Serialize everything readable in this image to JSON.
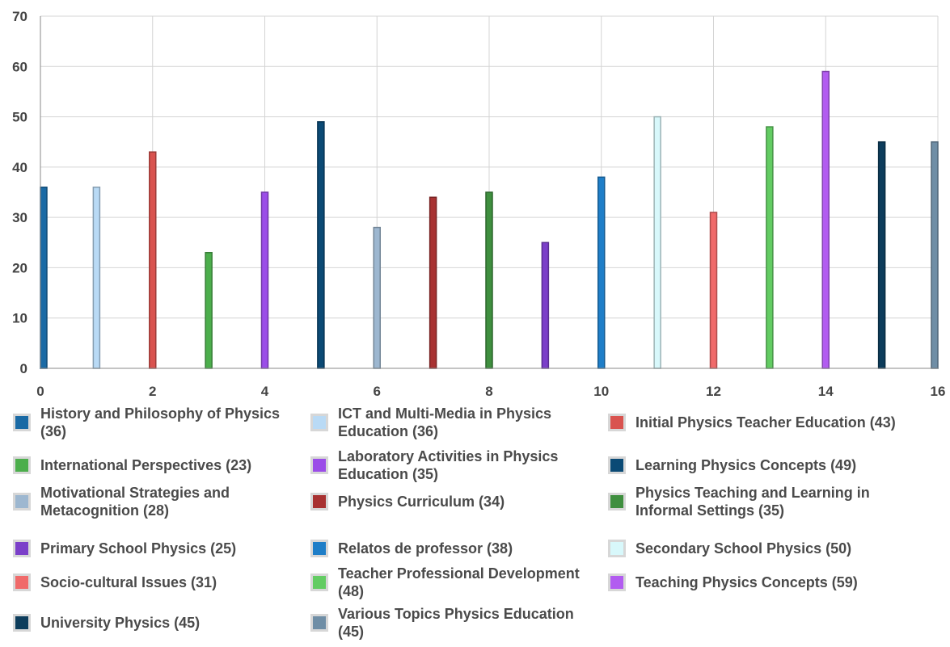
{
  "chart_data": {
    "type": "bar",
    "title": "",
    "xlabel": "",
    "ylabel": "",
    "x": [
      0,
      1,
      2,
      3,
      4,
      5,
      6,
      7,
      8,
      9,
      10,
      11,
      12,
      13,
      14,
      15,
      16
    ],
    "values": [
      36,
      36,
      43,
      23,
      35,
      49,
      28,
      34,
      35,
      25,
      38,
      50,
      31,
      48,
      59,
      45,
      45
    ],
    "colors": [
      "#1a6aa5",
      "#b9daf5",
      "#d9534f",
      "#4cae4c",
      "#9b4de8",
      "#0b4a75",
      "#9db7d0",
      "#a83232",
      "#3f8f3f",
      "#7b3fc9",
      "#1e7ec8",
      "#d8f8fb",
      "#f06a6a",
      "#63cc63",
      "#b25cf0",
      "#0d3d5c",
      "#6f8ea6"
    ],
    "xlim": [
      0,
      16
    ],
    "ylim": [
      0,
      70
    ],
    "x_ticks": [
      "0",
      "2",
      "4",
      "6",
      "8",
      "10",
      "12",
      "14",
      "16"
    ],
    "y_ticks": [
      "0",
      "10",
      "20",
      "30",
      "40",
      "50",
      "60",
      "70"
    ],
    "grid": true,
    "legend_position": "bottom",
    "legend": [
      "History and Philosophy of Physics (36)",
      "ICT and Multi-Media in Physics Education (36)",
      "Initial Physics Teacher Education (43)",
      "International Perspectives (23)",
      "Laboratory Activities in Physics Education (35)",
      "Learning Physics Concepts (49)",
      "Motivational Strategies and Metacognition (28)",
      "Physics Curriculum (34)",
      "Physics Teaching and Learning in Informal Settings (35)",
      "Primary School Physics (25)",
      "Relatos de professor (38)",
      "Secondary School Physics (50)",
      "Socio-cultural Issues (31)",
      "Teacher Professional Development (48)",
      "Teaching Physics Concepts (59)",
      "University Physics (45)",
      "Various Topics Physics Education (45)"
    ]
  }
}
